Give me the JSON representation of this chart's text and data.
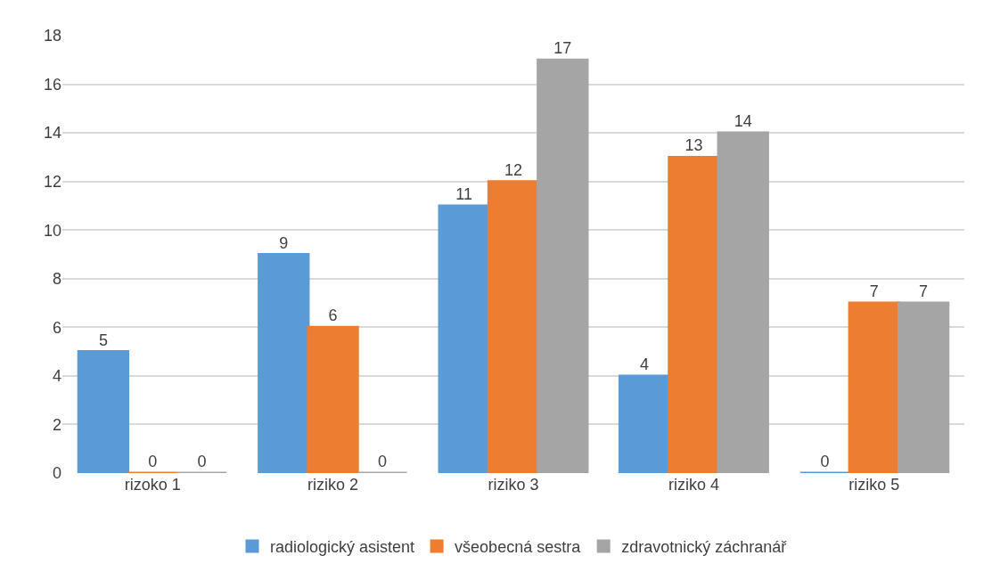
{
  "chart_data": {
    "type": "bar",
    "categories": [
      "rizoko 1",
      "riziko 2",
      "riziko 3",
      "riziko 4",
      "riziko 5"
    ],
    "series": [
      {
        "name": "radiologický asistent",
        "color": "#5b9bd5",
        "values": [
          5,
          9,
          11,
          4,
          0
        ]
      },
      {
        "name": "všeobecná sestra",
        "color": "#ed7d31",
        "values": [
          0,
          6,
          12,
          13,
          7
        ]
      },
      {
        "name": "zdravotnický záchranář",
        "color": "#a5a5a5",
        "values": [
          0,
          0,
          17,
          14,
          7
        ]
      }
    ],
    "ylim": [
      0,
      18
    ],
    "yticks": [
      0,
      2,
      4,
      6,
      8,
      10,
      12,
      14,
      16,
      18
    ],
    "grid": "y",
    "legend": "bottom",
    "data_labels": true
  }
}
